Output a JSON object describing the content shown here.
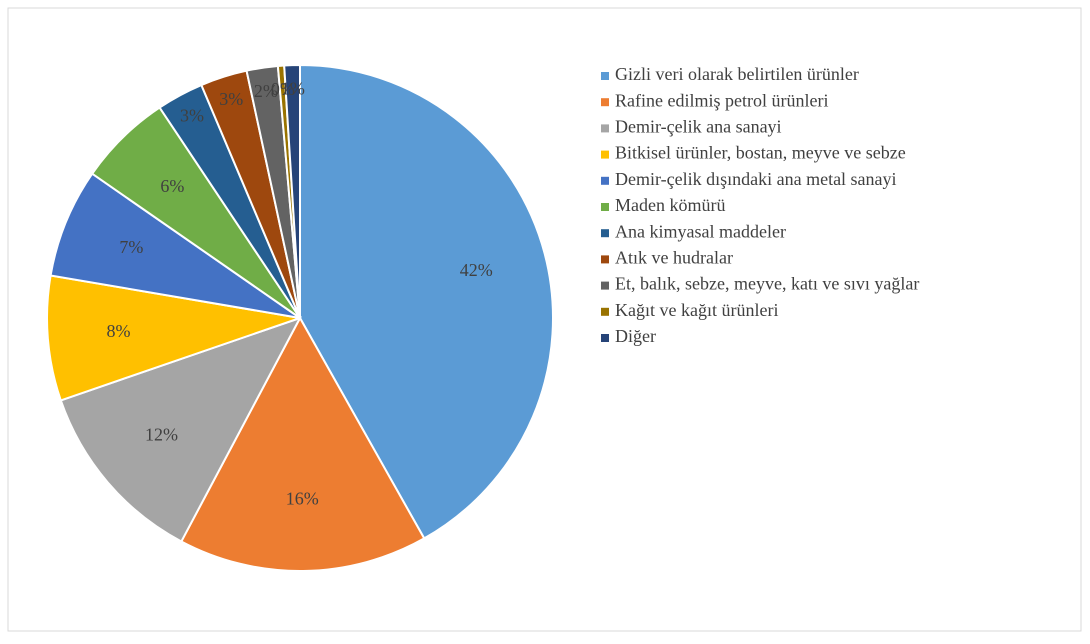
{
  "chart_data": {
    "type": "pie",
    "categories": [
      "Gizli veri olarak belirtilen ürünler",
      "Rafine edilmiş petrol ürünleri",
      "Demir-çelik ana sanayi",
      "Bitkisel ürünler, bostan, meyve ve sebze",
      "Demir-çelik dışındaki ana metal sanayi",
      "Maden kömürü",
      "Ana kimyasal maddeler",
      "Atık ve hudralar",
      "Et, balık, sebze, meyve, katı ve sıvı yağlar",
      "Kağıt ve kağıt ürünleri",
      "Diğer"
    ],
    "values": [
      42,
      16,
      12,
      8,
      7,
      6,
      3,
      3,
      2,
      0.4,
      1
    ],
    "value_labels": [
      "42%",
      "16%",
      "12%",
      "8%",
      "7%",
      "6%",
      "3%",
      "3%",
      "2%",
      "0%",
      "1%"
    ],
    "colors": [
      "#5b9bd5",
      "#ed7d31",
      "#a5a5a5",
      "#ffc000",
      "#4472c4",
      "#70ad47",
      "#255e91",
      "#9e480e",
      "#636363",
      "#997300",
      "#264478"
    ],
    "legend": "right"
  }
}
